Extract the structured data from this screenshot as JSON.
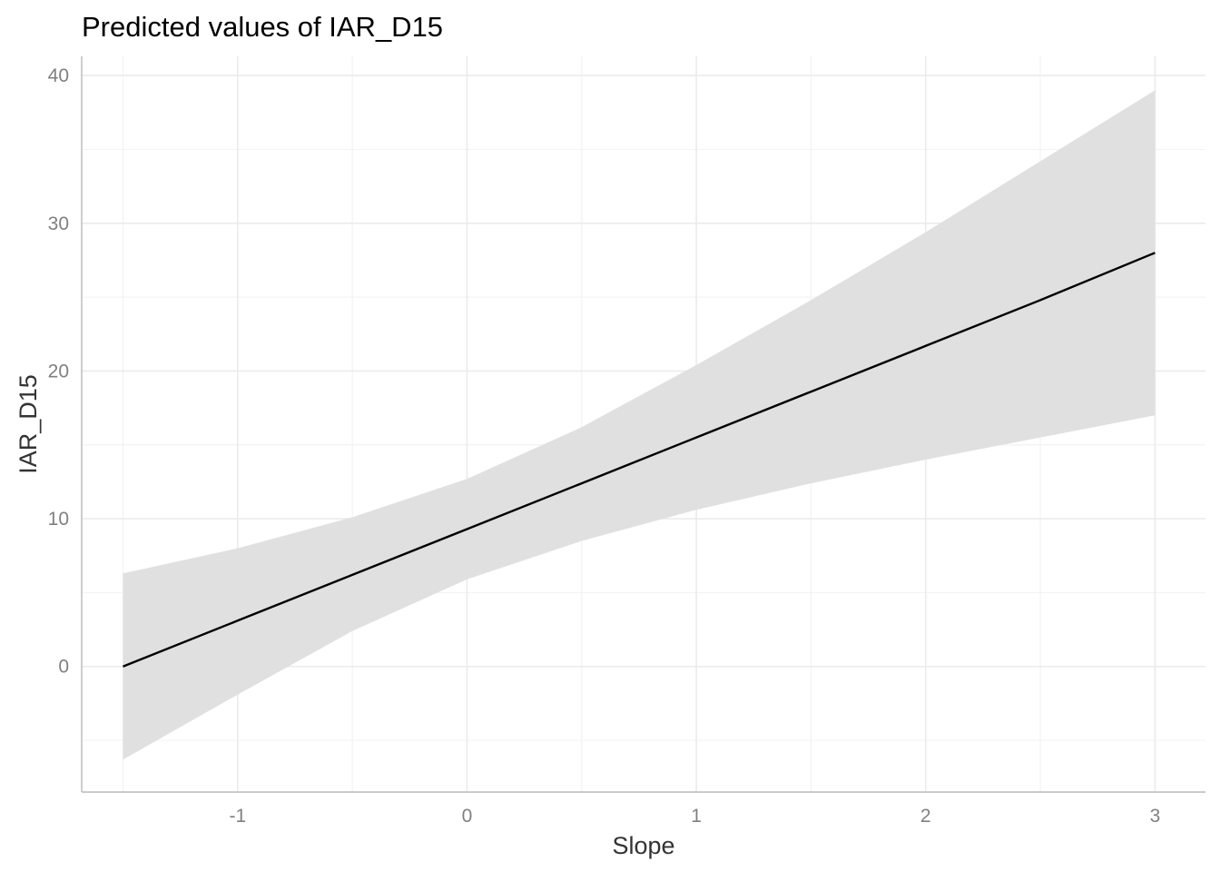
{
  "chart_data": {
    "type": "line",
    "title": "Predicted values of IAR_D15",
    "xlabel": "Slope",
    "ylabel": "IAR_D15",
    "xlim": [
      -1.68,
      3.22
    ],
    "ylim": [
      -8.5,
      41.3
    ],
    "x_ticks": [
      -1,
      0,
      1,
      2,
      3
    ],
    "x_tick_labels": [
      "-1",
      "0",
      "1",
      "2",
      "3"
    ],
    "y_ticks": [
      0,
      10,
      20,
      30,
      40
    ],
    "y_tick_labels": [
      "0",
      "10",
      "20",
      "30",
      "40"
    ],
    "x_minor": [
      -1.5,
      -0.5,
      0.5,
      1.5,
      2.5
    ],
    "y_minor": [
      -5,
      5,
      15,
      25,
      35
    ],
    "grid": true,
    "legend": "none",
    "line_color": "#000000",
    "ribbon_color": "#e0e0e0",
    "series": [
      {
        "x": [
          -1.5,
          -1.0,
          -0.5,
          0.0,
          0.5,
          1.0,
          1.5,
          2.0,
          2.5,
          3.0
        ],
        "y": [
          0.0,
          3.1,
          6.2,
          9.3,
          12.4,
          15.5,
          18.6,
          21.7,
          24.8,
          28.0
        ],
        "lower": [
          -6.3,
          -1.9,
          2.4,
          5.9,
          8.5,
          10.6,
          12.4,
          14.0,
          15.5,
          17.0
        ],
        "upper": [
          6.3,
          8.0,
          10.1,
          12.7,
          16.2,
          20.4,
          24.8,
          29.4,
          34.2,
          39.0
        ]
      }
    ]
  }
}
